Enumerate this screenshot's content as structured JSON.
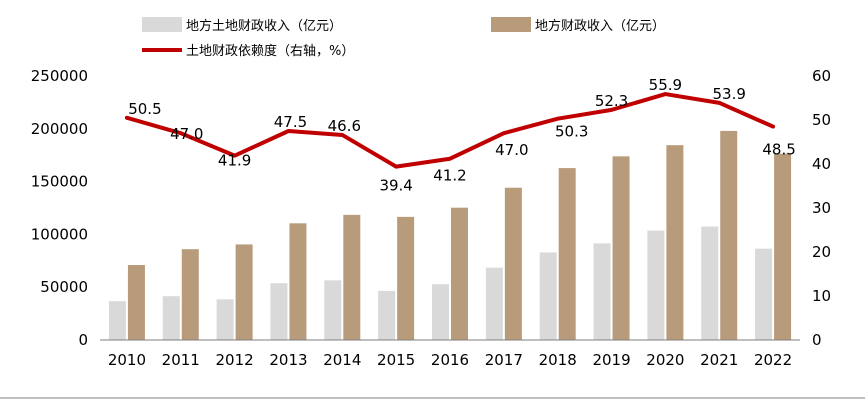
{
  "chart_data": {
    "type": "bar+line",
    "categories": [
      "2010",
      "2011",
      "2012",
      "2013",
      "2014",
      "2015",
      "2016",
      "2017",
      "2018",
      "2019",
      "2020",
      "2021",
      "2022"
    ],
    "series": [
      {
        "name": "地方土地财政收入（亿元）",
        "type": "bar",
        "axis": "left",
        "color": "#d9d9d9",
        "values": [
          36800,
          41500,
          38500,
          53800,
          56500,
          46500,
          52800,
          68500,
          82900,
          91500,
          103600,
          107500,
          86500
        ]
      },
      {
        "name": "地方财政收入（亿元）",
        "type": "bar",
        "axis": "left",
        "color": "#b89b7b",
        "values": [
          71000,
          86000,
          90500,
          110500,
          118500,
          116600,
          125300,
          144200,
          162800,
          173900,
          184500,
          198000,
          176400
        ]
      },
      {
        "name": "土地财政依赖度（右轴，%）",
        "type": "line",
        "axis": "right",
        "color": "#c00000",
        "values": [
          50.5,
          47.0,
          41.9,
          47.5,
          46.6,
          39.4,
          41.2,
          47.0,
          50.3,
          52.3,
          55.9,
          53.9,
          48.5
        ]
      }
    ],
    "line_labels": [
      "50.5",
      "47.0",
      "41.9",
      "47.5",
      "46.6",
      "39.4",
      "41.2",
      "47.0",
      "50.3",
      "52.3",
      "55.9",
      "53.9",
      "48.5"
    ],
    "left_axis": {
      "min": 0,
      "max": 250000,
      "ticks": [
        "0",
        "50000",
        "100000",
        "150000",
        "200000",
        "250000"
      ]
    },
    "right_axis": {
      "min": 0,
      "max": 60,
      "ticks": [
        "0",
        "10",
        "20",
        "30",
        "40",
        "50",
        "60"
      ]
    },
    "legend": [
      {
        "label": "地方土地财政收入（亿元）",
        "swatch": "box",
        "color": "#d9d9d9"
      },
      {
        "label": "地方财政收入（亿元）",
        "swatch": "box",
        "color": "#b89b7b"
      },
      {
        "label": "土地财政依赖度（右轴，%）",
        "swatch": "line",
        "color": "#c00000"
      }
    ],
    "legend_position": "top",
    "grid": false
  }
}
